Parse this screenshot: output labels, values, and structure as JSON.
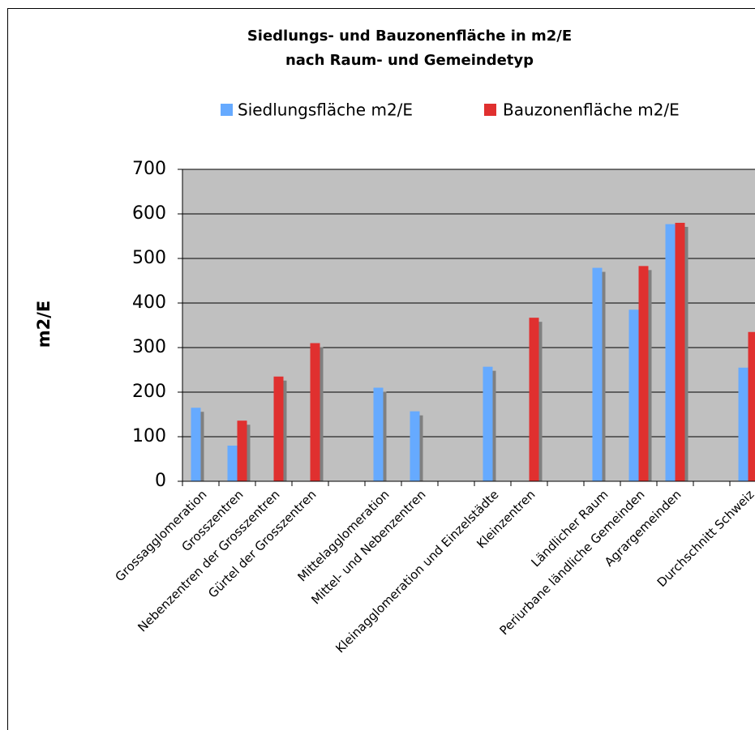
{
  "chart_data": {
    "type": "bar",
    "title": "Siedlungs- und Bauzonenfläche in m2/E",
    "subtitle": "nach Raum- und Gemeindetyp",
    "y_label": "m2/E",
    "categories": [
      "Grossagglomeration",
      "Grosszentren",
      "Nebenzentren der Grosszentren",
      "Gürtel der Grosszentren",
      null,
      "Mittelagglomeration",
      "Mittel- und Nebenzentren",
      null,
      "Kleinagglomeration und Einzelstädte",
      "Kleinzentren",
      null,
      "Ländlicher Raum",
      "Periurbane ländliche Gemeinden",
      "Agrargemeinden",
      null,
      "Durchschnitt Schweiz"
    ],
    "series": [
      {
        "name": "Siedlungsfläche m2/E",
        "color": "#66aaff",
        "values": [
          165,
          80,
          null,
          null,
          null,
          210,
          157,
          null,
          257,
          null,
          null,
          479,
          385,
          577,
          null,
          255
        ]
      },
      {
        "name": "Bauzonenfläche m2/E",
        "color": "#e0302f",
        "values": [
          null,
          136,
          235,
          310,
          null,
          null,
          null,
          null,
          null,
          367,
          null,
          null,
          483,
          580,
          null,
          335
        ]
      }
    ],
    "ylim": [
      0,
      700
    ],
    "yticks": [
      0,
      100,
      200,
      300,
      400,
      500,
      600,
      700
    ],
    "grid": true
  }
}
